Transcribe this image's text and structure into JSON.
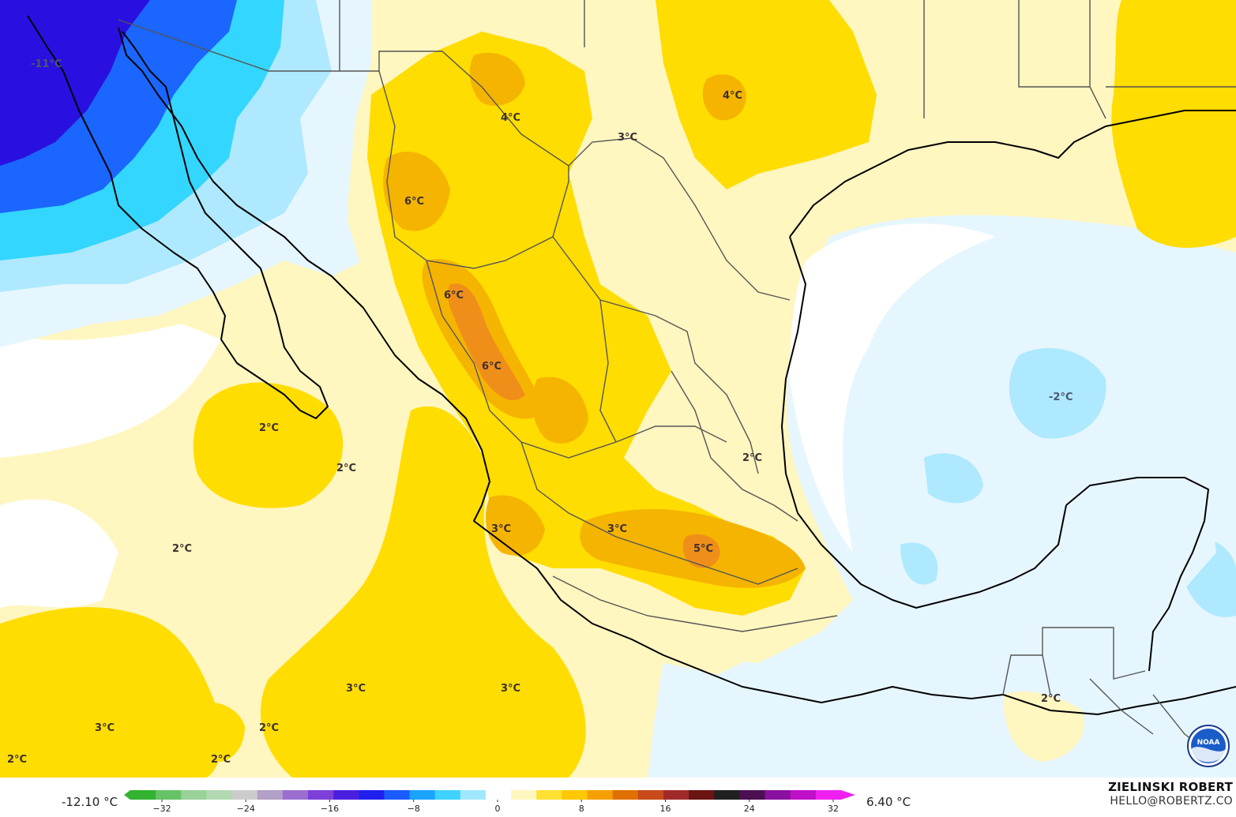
{
  "map": {
    "region": "Mexico and Gulf of Mexico",
    "variable": "temperature anomaly",
    "colors": {
      "cold_extreme": "#2a10e0",
      "cold_blue": "#1a66ff",
      "cold_cyan": "#33d6ff",
      "cold_light": "#aee9ff",
      "cold_pale": "#e6f6ff",
      "neutral": "#ffffff",
      "warm_pale": "#fff3b8",
      "warm_yellow": "#ffdd00",
      "warm_orange": "#f5b400",
      "warm_deep": "#ef8f1a",
      "coast": "#000000",
      "borders": "#555555"
    },
    "labels": [
      {
        "id": "anom-nw",
        "text": "-11°C"
      },
      {
        "id": "anom-texas",
        "text": "4°C"
      },
      {
        "id": "anom-chih",
        "text": "4°C"
      },
      {
        "id": "anom-coah",
        "text": "3°C"
      },
      {
        "id": "anom-sonora",
        "text": "6°C"
      },
      {
        "id": "anom-sierra1",
        "text": "6°C"
      },
      {
        "id": "anom-sierra2",
        "text": "6°C"
      },
      {
        "id": "anom-gulf",
        "text": "-2°C"
      },
      {
        "id": "anom-pac1",
        "text": "2°C"
      },
      {
        "id": "anom-pac2",
        "text": "2°C"
      },
      {
        "id": "anom-pac3",
        "text": "2°C"
      },
      {
        "id": "anom-tamps",
        "text": "2°C"
      },
      {
        "id": "anom-jal",
        "text": "3°C"
      },
      {
        "id": "anom-mich",
        "text": "3°C"
      },
      {
        "id": "anom-central",
        "text": "5°C"
      },
      {
        "id": "anom-pac4",
        "text": "3°C"
      },
      {
        "id": "anom-pac5",
        "text": "3°C"
      },
      {
        "id": "anom-pac6",
        "text": "3°C"
      },
      {
        "id": "anom-pac7",
        "text": "2°C"
      },
      {
        "id": "anom-pac8",
        "text": "2°C"
      },
      {
        "id": "anom-pac9",
        "text": "2°C"
      },
      {
        "id": "anom-guate",
        "text": "2°C"
      }
    ]
  },
  "legend": {
    "min_value": "-12.10 °C",
    "max_value": "6.40 °C",
    "ticks": [
      "−32",
      "−24",
      "−16",
      "−8",
      "0",
      "8",
      "16",
      "24",
      "32"
    ],
    "colors": [
      "#32b332",
      "#66c266",
      "#99d199",
      "#b3d9b3",
      "#cccccc",
      "#b3a0c8",
      "#9a6fd0",
      "#7d3fd8",
      "#4b1fe0",
      "#2020ee",
      "#1a5cff",
      "#1aa3ff",
      "#40d2ff",
      "#a0e8ff",
      "#ffffff",
      "#fff6c0",
      "#ffe033",
      "#ffc800",
      "#f5a000",
      "#e07000",
      "#c84a1a",
      "#a02a2a",
      "#6a1414",
      "#202020",
      "#4a1050",
      "#8a10a0",
      "#c010c8",
      "#f020f0"
    ]
  },
  "branding": {
    "author": "ZIELINSKI ROBERT",
    "contact": "HELLO@ROBERTZ.CO",
    "logo_text": "NOAA",
    "logo_icon": "noaa-logo-icon"
  }
}
